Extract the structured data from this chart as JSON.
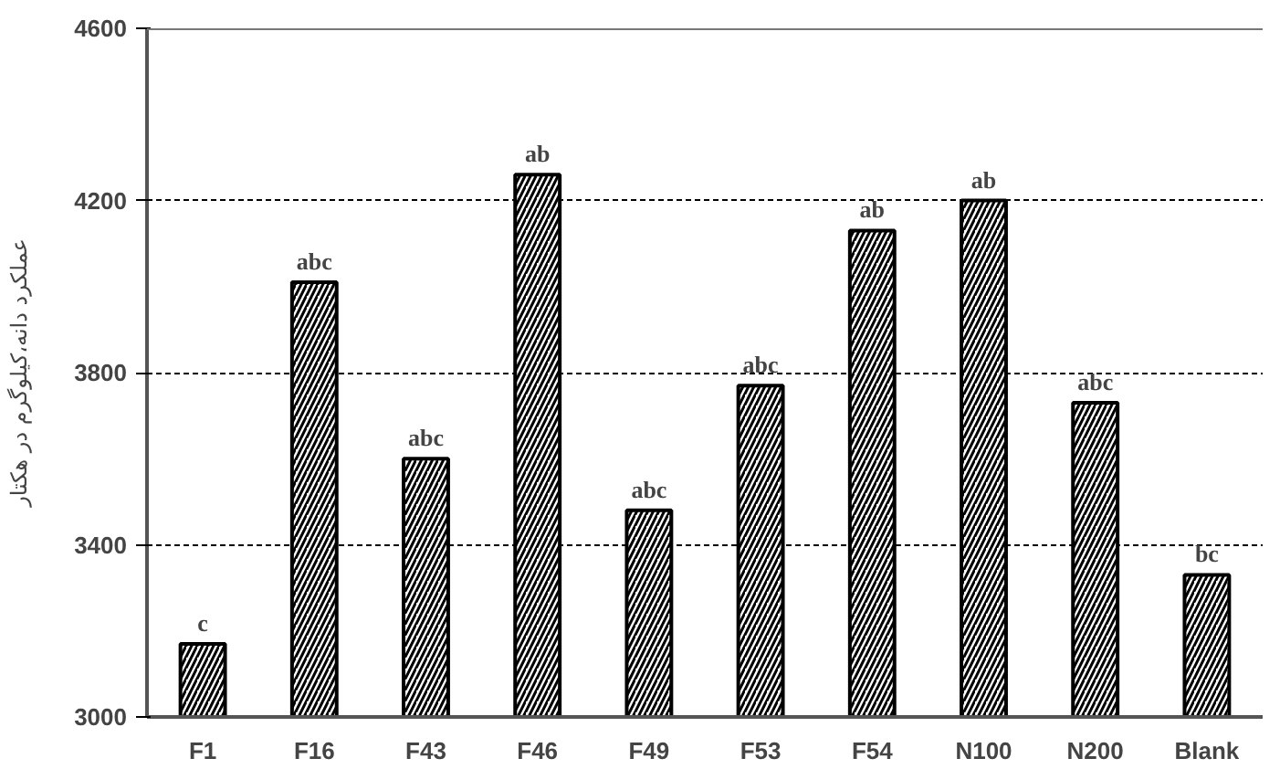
{
  "chart_data": {
    "type": "bar",
    "ylabel": "عملکرد دانه،کیلوگرم در هکتار",
    "categories": [
      "F1",
      "F16",
      "F43",
      "F46",
      "F49",
      "F53",
      "F54",
      "N100",
      "N200",
      "Blank"
    ],
    "values": [
      3170,
      4010,
      3600,
      4260,
      3480,
      3770,
      4130,
      4200,
      3730,
      3330
    ],
    "color": "#000000",
    "ylim": [
      3000,
      4600
    ],
    "yticks": [
      3000,
      3400,
      3800,
      4200,
      4600
    ],
    "grid": "y",
    "annotations": [
      {
        "text": "c",
        "x": "F1",
        "y": 3170
      },
      {
        "text": "abc",
        "x": "F16",
        "y": 4010
      },
      {
        "text": "abc",
        "x": "F43",
        "y": 3600
      },
      {
        "text": "ab",
        "x": "F46",
        "y": 4260
      },
      {
        "text": "abc",
        "x": "F49",
        "y": 3480
      },
      {
        "text": "abc",
        "x": "F53",
        "y": 3770
      },
      {
        "text": "ab",
        "x": "F54",
        "y": 4130
      },
      {
        "text": "ab",
        "x": "N100",
        "y": 4200
      },
      {
        "text": "abc",
        "x": "N200",
        "y": 3730
      },
      {
        "text": "bc",
        "x": "Blank",
        "y": 3330
      }
    ]
  }
}
